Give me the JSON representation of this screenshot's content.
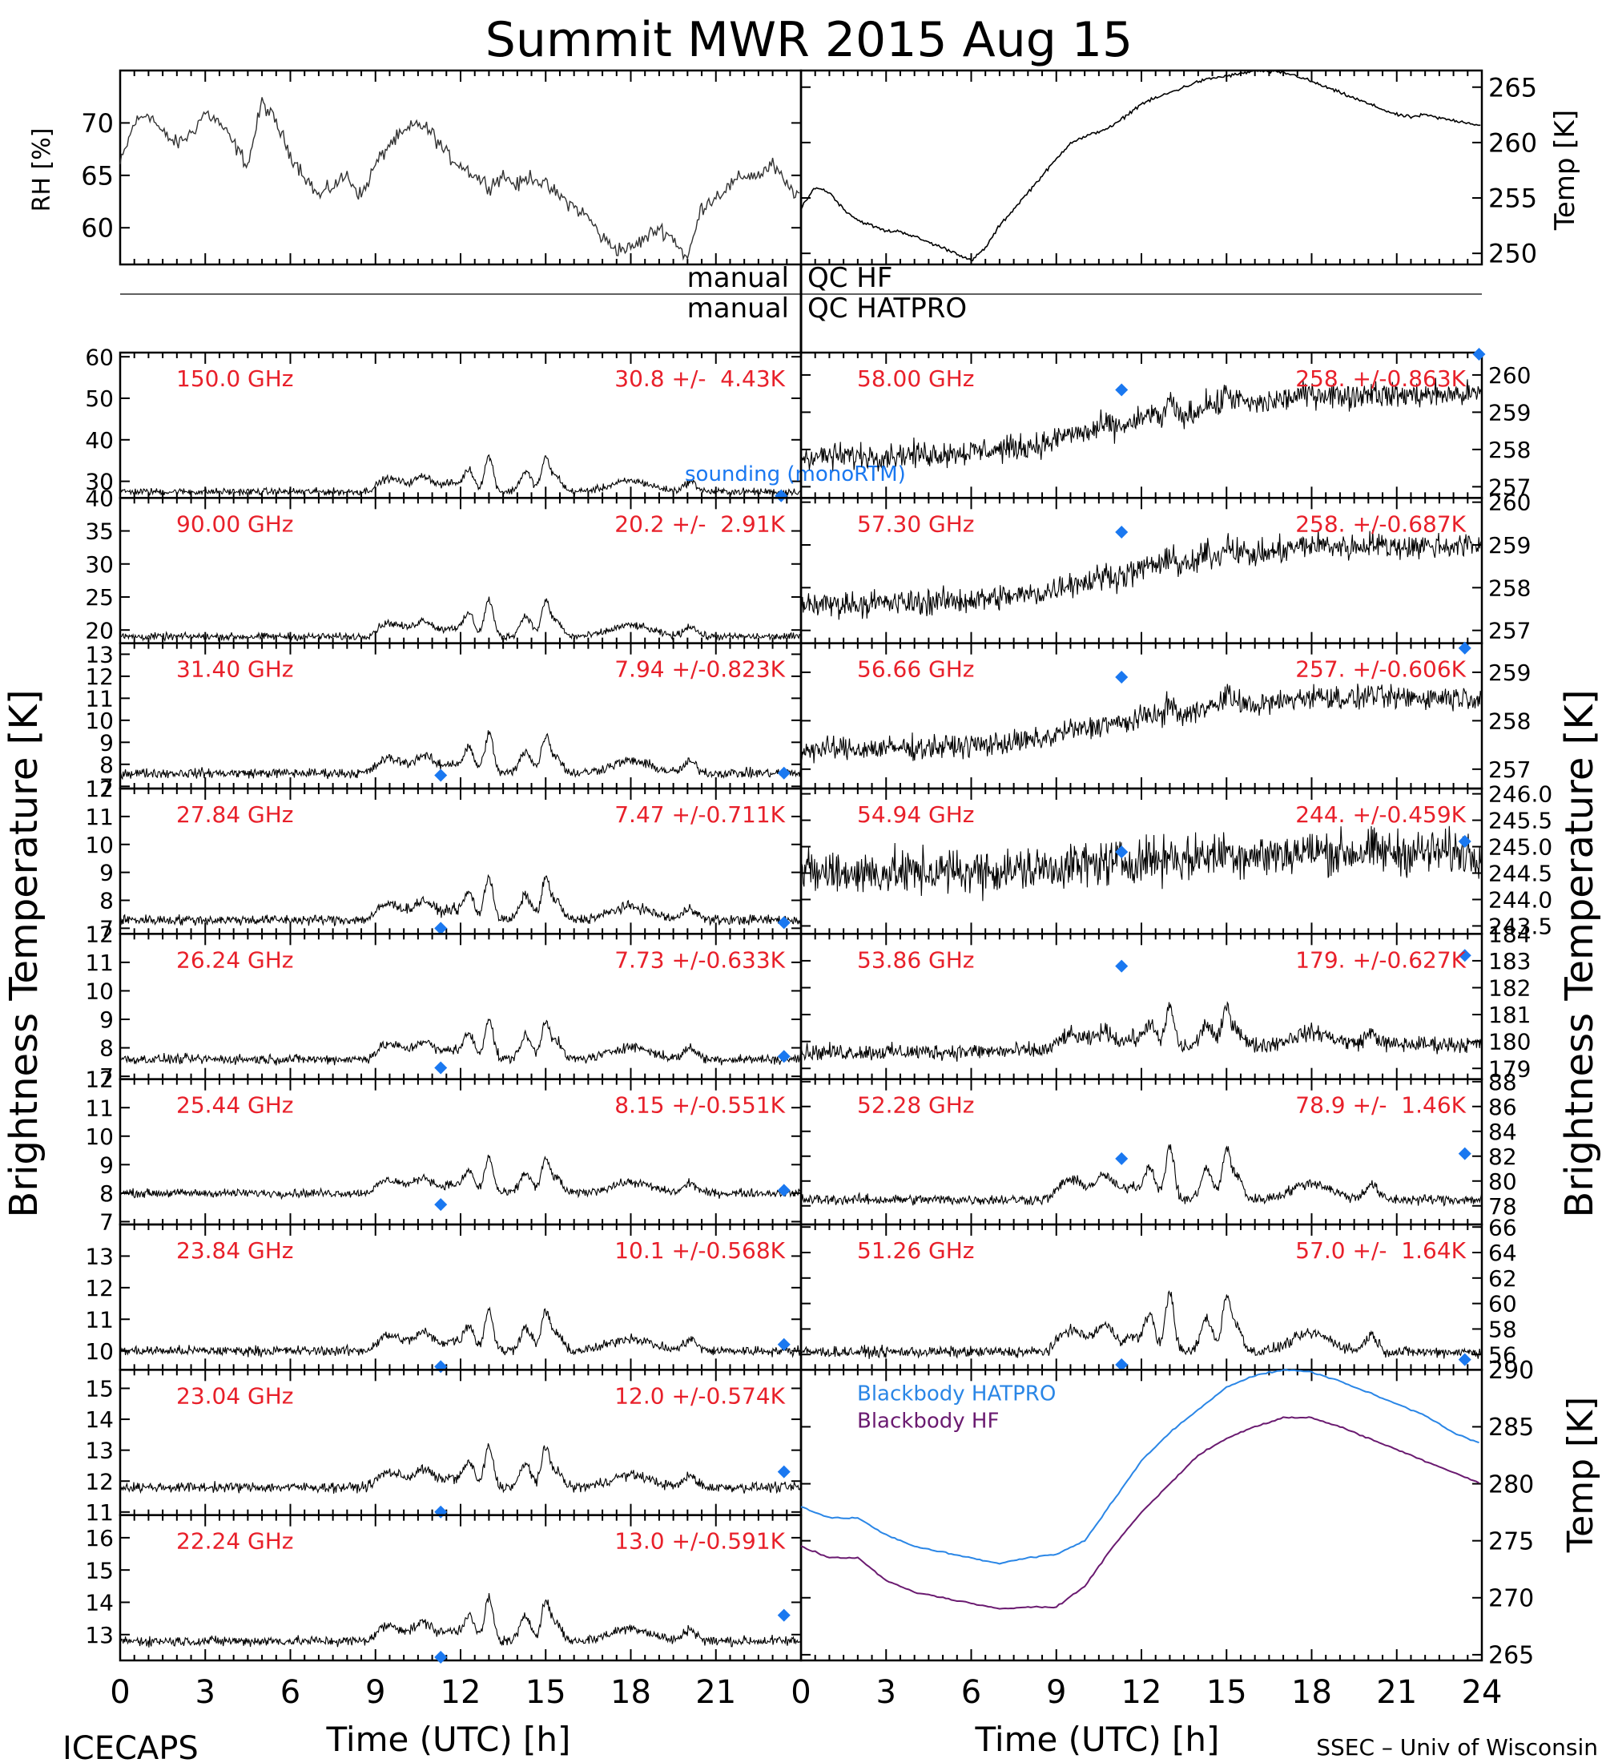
{
  "title": "Summit MWR 2015 Aug 15",
  "footer": {
    "left": "ICECAPS",
    "right": "SSEC – Univ of Wisconsin"
  },
  "labels": {
    "rh_axis": "RH [%]",
    "temp_axis_top": "Temp [K]",
    "tb_left": "Brightness Temperature [K]",
    "tb_right": "Brightness Temperature [K]",
    "temp_axis_bottom": "Temp [K]",
    "xlabel_left": "Time (UTC) [h]",
    "xlabel_right": "Time (UTC) [h]",
    "qc_hf_left": "manual",
    "qc_hf_right": "QC HF",
    "qc_hatpro_left": "manual",
    "qc_hatpro_right": "QC HATPRO",
    "sounding_label": "sounding (monoRTM)"
  },
  "colors": {
    "data": "#000000",
    "channel_text": "#e8202a",
    "sounding": "#1a78f0",
    "bb_hatpro": "#2a86e6",
    "bb_hf": "#6a1a70"
  },
  "chart_data": {
    "type": "line",
    "x_range": [
      0,
      24
    ],
    "x_ticks": [
      "0",
      "3",
      "6",
      "9",
      "12",
      "15",
      "18",
      "21",
      "24"
    ],
    "met": {
      "rh": {
        "ylabel": "RH [%]",
        "ylim": [
          56.5,
          75
        ],
        "ticks": [
          "60",
          "65",
          "70"
        ],
        "x": [
          0,
          0.5,
          1,
          1.5,
          2,
          2.5,
          3,
          3.5,
          4,
          4.5,
          5,
          5.5,
          6,
          6.5,
          7,
          7.5,
          8,
          8.5,
          9,
          9.5,
          10,
          10.5,
          11,
          11.5,
          12,
          12.5,
          13,
          13.5,
          14,
          14.5,
          15,
          15.5,
          16,
          16.5,
          17,
          17.5,
          18,
          18.5,
          19,
          19.5,
          20,
          20.5,
          21,
          21.5,
          22,
          22.5,
          23,
          23.5,
          24
        ],
        "y": [
          66,
          70,
          71,
          69,
          68,
          69,
          71,
          70,
          68,
          66,
          72,
          70,
          67,
          65,
          63,
          64,
          65,
          63,
          66,
          68,
          69,
          70,
          69,
          67,
          66,
          65,
          64,
          65,
          64,
          65,
          64,
          63,
          62,
          61,
          59,
          58,
          58,
          59,
          60,
          59,
          57,
          62,
          63,
          64,
          65,
          65,
          66,
          64,
          63
        ]
      },
      "temp": {
        "ylabel": "Temp [K]",
        "ylim": [
          249,
          266.5
        ],
        "ticks": [
          "250",
          "255",
          "260",
          "265"
        ],
        "x": [
          0,
          0.5,
          1,
          1.5,
          2,
          2.5,
          3,
          3.5,
          4,
          4.5,
          5,
          5.5,
          6,
          6.5,
          7,
          7.5,
          8,
          8.5,
          9,
          9.5,
          10,
          10.5,
          11,
          11.5,
          12,
          12.5,
          13,
          13.5,
          14,
          14.5,
          15,
          15.5,
          16,
          16.5,
          17,
          17.5,
          18,
          18.5,
          19,
          19.5,
          20,
          20.5,
          21,
          21.5,
          22,
          22.5,
          23,
          23.5,
          24
        ],
        "y": [
          254,
          256,
          255.5,
          254,
          253,
          252.5,
          252,
          252,
          251.5,
          251,
          250.5,
          250,
          249.3,
          250.5,
          252.5,
          254,
          255.5,
          257,
          258.5,
          260,
          260.5,
          261,
          261.5,
          262.5,
          263.5,
          264,
          264.5,
          265,
          265.5,
          265.8,
          266,
          266.2,
          266.5,
          266.4,
          266.3,
          266,
          265.5,
          265,
          264.5,
          264,
          263.5,
          263,
          262.5,
          262.3,
          262.5,
          262.2,
          262,
          261.8,
          261.5
        ]
      }
    },
    "qc_rows": [
      "QC HF",
      "QC HATPRO"
    ],
    "channels_left": [
      {
        "freq": "150.0 GHz",
        "stat": "30.8 +/-  4.43K",
        "ylim": [
          26,
          61
        ],
        "ticks": [
          "30",
          "40",
          "50",
          "60"
        ],
        "base": 27.5,
        "amp": 6.8,
        "noise": 0.7,
        "sounding": [
          [
            23.3,
            26.5
          ]
        ]
      },
      {
        "freq": "90.00 GHz",
        "stat": "20.2 +/-  2.91K",
        "ylim": [
          18,
          40
        ],
        "ticks": [
          "20",
          "25",
          "30",
          "35",
          "40"
        ],
        "base": 19,
        "amp": 4.5,
        "noise": 0.45,
        "sounding": []
      },
      {
        "freq": "31.40 GHz",
        "stat": "7.94 +/-0.823K",
        "ylim": [
          6.9,
          13.5
        ],
        "ticks": [
          "7",
          "8",
          "9",
          "10",
          "11",
          "12",
          "13"
        ],
        "base": 7.6,
        "amp": 1.45,
        "noise": 0.18,
        "sounding": [
          [
            11.3,
            7.5
          ],
          [
            23.4,
            7.6
          ]
        ]
      },
      {
        "freq": "27.84 GHz",
        "stat": "7.47 +/-0.711K",
        "ylim": [
          6.8,
          12
        ],
        "ticks": [
          "7",
          "8",
          "9",
          "10",
          "11",
          "12"
        ],
        "base": 7.3,
        "amp": 1.25,
        "noise": 0.15,
        "sounding": [
          [
            11.3,
            7.0
          ],
          [
            23.4,
            7.2
          ]
        ]
      },
      {
        "freq": "26.24 GHz",
        "stat": "7.73 +/-0.633K",
        "ylim": [
          6.9,
          12
        ],
        "ticks": [
          "7",
          "8",
          "9",
          "10",
          "11",
          "12"
        ],
        "base": 7.6,
        "amp": 1.15,
        "noise": 0.14,
        "sounding": [
          [
            11.3,
            7.3
          ],
          [
            23.4,
            7.7
          ]
        ]
      },
      {
        "freq": "25.44 GHz",
        "stat": "8.15 +/-0.551K",
        "ylim": [
          6.9,
          12
        ],
        "ticks": [
          "7",
          "8",
          "9",
          "10",
          "11",
          "12"
        ],
        "base": 8.0,
        "amp": 1.0,
        "noise": 0.12,
        "sounding": [
          [
            11.3,
            7.6
          ],
          [
            23.4,
            8.1
          ]
        ]
      },
      {
        "freq": "23.84 GHz",
        "stat": "10.1 +/-0.568K",
        "ylim": [
          9.4,
          14
        ],
        "ticks": [
          "10",
          "11",
          "12",
          "13"
        ],
        "base": 10.0,
        "amp": 1.05,
        "noise": 0.13,
        "sounding": [
          [
            11.3,
            9.5
          ],
          [
            23.4,
            10.2
          ]
        ]
      },
      {
        "freq": "23.04 GHz",
        "stat": "12.0 +/-0.574K",
        "ylim": [
          10.9,
          15.6
        ],
        "ticks": [
          "11",
          "12",
          "13",
          "14",
          "15"
        ],
        "base": 11.8,
        "amp": 1.05,
        "noise": 0.13,
        "sounding": [
          [
            11.3,
            11.0
          ],
          [
            23.4,
            12.3
          ]
        ]
      },
      {
        "freq": "22.24 GHz",
        "stat": "13.0 +/-0.591K",
        "ylim": [
          12.2,
          16.7
        ],
        "ticks": [
          "13",
          "14",
          "15",
          "16"
        ],
        "base": 12.8,
        "amp": 1.05,
        "noise": 0.13,
        "sounding": [
          [
            11.3,
            12.3
          ],
          [
            23.4,
            13.6
          ]
        ]
      }
    ],
    "channels_right": [
      {
        "freq": "58.00 GHz",
        "stat": "258. +/-0.863K",
        "ylim": [
          256.7,
          260.6
        ],
        "ticks": [
          "257",
          "258",
          "259",
          "260"
        ],
        "base": 257.8,
        "rise": 1.7,
        "amp": 0.35,
        "noise": 0.28,
        "sounding": [
          [
            11.3,
            259.6
          ],
          [
            23.9,
            260.7
          ]
        ]
      },
      {
        "freq": "57.30 GHz",
        "stat": "258. +/-0.687K",
        "ylim": [
          256.7,
          260.1
        ],
        "ticks": [
          "257",
          "258",
          "259",
          "260"
        ],
        "base": 257.6,
        "rise": 1.4,
        "amp": 0.3,
        "noise": 0.25,
        "sounding": [
          [
            11.3,
            259.3
          ]
        ]
      },
      {
        "freq": "56.66 GHz",
        "stat": "257. +/-0.606K",
        "ylim": [
          256.6,
          259.6
        ],
        "ticks": [
          "257",
          "258",
          "259"
        ],
        "base": 257.4,
        "rise": 1.1,
        "amp": 0.25,
        "noise": 0.2,
        "sounding": [
          [
            11.3,
            258.9
          ],
          [
            23.4,
            259.5
          ]
        ]
      },
      {
        "freq": "54.94 GHz",
        "stat": "244. +/-0.459K",
        "ylim": [
          243.35,
          246.1
        ],
        "ticks": [
          "243.5",
          "244.0",
          "244.5",
          "245.0",
          "245.5",
          "246.0"
        ],
        "base": 244.5,
        "rise": 0.4,
        "amp": 0.1,
        "noise": 0.35,
        "sounding": [
          [
            11.3,
            244.9
          ],
          [
            23.4,
            245.1
          ]
        ]
      },
      {
        "freq": "53.86 GHz",
        "stat": "179. +/-0.627K",
        "ylim": [
          178.6,
          184
        ],
        "ticks": [
          "179",
          "180",
          "181",
          "182",
          "183",
          "184"
        ],
        "base": 179.6,
        "rise": 0.3,
        "amp": 1.2,
        "noise": 0.25,
        "sounding": [
          [
            11.3,
            182.8
          ],
          [
            23.4,
            183.2
          ]
        ]
      },
      {
        "freq": "52.28 GHz",
        "stat": "78.9 +/-  1.46K",
        "ylim": [
          76.5,
          88.2
        ],
        "ticks": [
          "78",
          "80",
          "82",
          "84",
          "86",
          "88"
        ],
        "base": 78.5,
        "rise": 0.0,
        "amp": 3.5,
        "noise": 0.35,
        "sounding": [
          [
            11.3,
            81.8
          ],
          [
            23.4,
            82.2
          ]
        ]
      },
      {
        "freq": "51.26 GHz",
        "stat": "57.0 +/-  1.64K",
        "ylim": [
          54.8,
          66.2
        ],
        "ticks": [
          "56",
          "58",
          "60",
          "62",
          "64",
          "66"
        ],
        "base": 56.2,
        "rise": 0.0,
        "amp": 3.8,
        "noise": 0.35,
        "sounding": [
          [
            11.3,
            55.2
          ],
          [
            23.4,
            55.6
          ]
        ]
      }
    ],
    "blackbody": {
      "ylabel": "Temp [K]",
      "ylim": [
        264.5,
        290
      ],
      "ticks": [
        "265",
        "270",
        "275",
        "280",
        "285",
        "290"
      ],
      "x": [
        0,
        1,
        2,
        3,
        4,
        5,
        6,
        7,
        8,
        9,
        10,
        11,
        12,
        13,
        14,
        15,
        16,
        17,
        18,
        19,
        20,
        21,
        22,
        23,
        24
      ],
      "series": [
        {
          "name": "Blackbody HATPRO",
          "values": [
            278,
            277,
            277,
            275.5,
            274.5,
            274,
            273.5,
            273,
            273.5,
            273.8,
            275,
            278.5,
            282,
            284.5,
            286.5,
            288.5,
            289.5,
            290,
            289.8,
            289,
            288,
            287,
            286,
            284.5,
            283.5
          ]
        },
        {
          "name": "Blackbody HF",
          "values": [
            274.5,
            273.5,
            273.5,
            271.5,
            270.5,
            270,
            269.5,
            269,
            269.2,
            269.2,
            271,
            274.5,
            277.5,
            280,
            282.5,
            284,
            285,
            285.8,
            285.8,
            285,
            284,
            283,
            282,
            281,
            280
          ]
        }
      ]
    }
  }
}
